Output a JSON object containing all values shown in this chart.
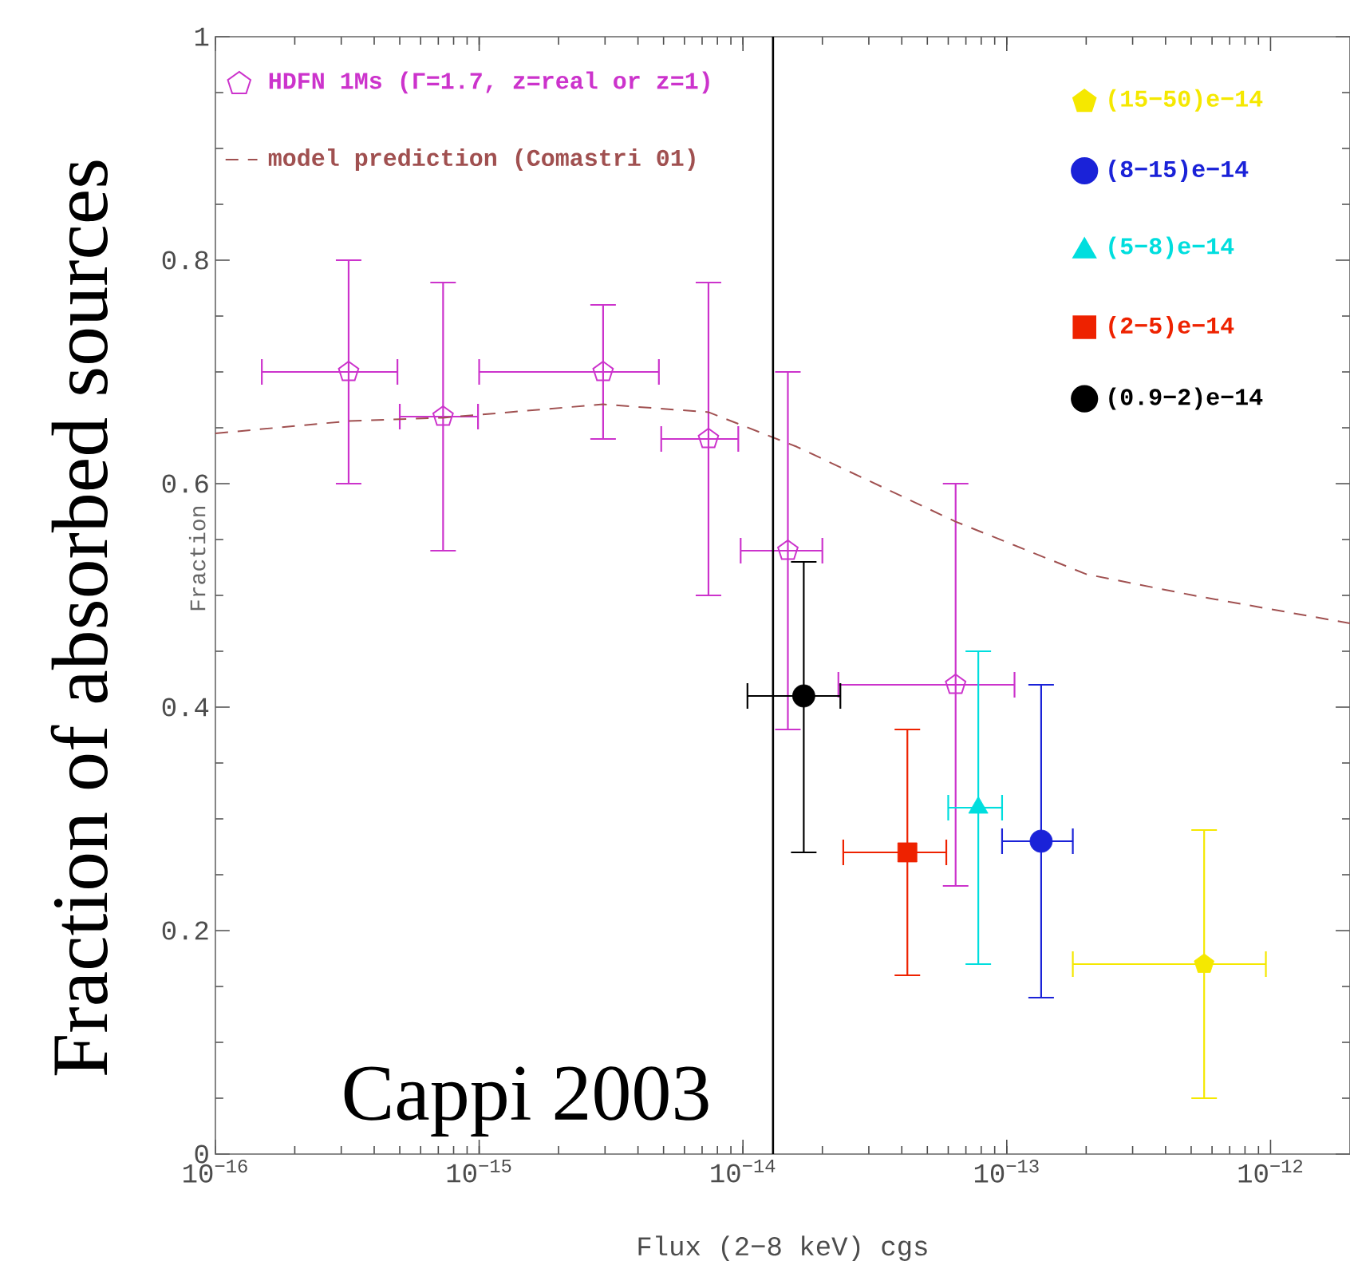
{
  "chart_data": {
    "type": "scatter",
    "xlabel": "Flux (2−8 keV) cgs",
    "ylabel": "Fraction of absorbed sources",
    "annotations": [
      "Cappi 2003",
      "Fraction"
    ],
    "log": "x",
    "xlim": [
      1e-16,
      2e-12
    ],
    "ylim": [
      0,
      1
    ],
    "xticks": [
      {
        "value": 1e-16,
        "label": "10$^{−16}$"
      },
      {
        "value": 1e-15,
        "label": "10$^{−15}$"
      },
      {
        "value": 1e-14,
        "label": "10$^{−14}$"
      },
      {
        "value": 1e-13,
        "label": "10$^{−13}$"
      },
      {
        "value": 1e-12,
        "label": "10$^{−12}$"
      }
    ],
    "yticks": [
      0,
      0.2,
      0.4,
      0.6,
      0.8,
      1
    ],
    "legend": "top",
    "grid": false,
    "ref_lines": [
      {
        "axis": "x",
        "value": 1.3e-14,
        "color": "#000000"
      }
    ],
    "series": [
      {
        "name": "HDFN 1Ms (Γ=1.7, z=real or z=1)",
        "color": "#cc33cc",
        "x": [
          3.2e-16,
          7.3e-16,
          2.95e-15,
          7.4e-15,
          1.48e-14,
          6.4e-14
        ],
        "values": [
          0.7,
          0.66,
          0.7,
          0.64,
          0.54,
          0.42
        ],
        "errors": [
          [
            0.6,
            0.8
          ],
          [
            0.54,
            0.78
          ],
          [
            0.64,
            0.76
          ],
          [
            0.5,
            0.78
          ],
          [
            0.38,
            0.7
          ],
          [
            0.24,
            0.6
          ]
        ],
        "xerrors": [
          [
            1.5e-16,
            4.9e-16
          ],
          [
            5e-16,
            9.9e-16
          ],
          [
            1e-15,
            4.8e-15
          ],
          [
            4.9e-15,
            9.6e-15
          ],
          [
            9.8e-15,
            2e-14
          ],
          [
            2.3e-14,
            1.07e-13
          ]
        ]
      },
      {
        "name": "model prediction (Comastri 01)",
        "type": "line",
        "line_style": "dashed",
        "marker": "none",
        "color": "#a05050",
        "x": [
          1e-16,
          3.2e-16,
          7.3e-16,
          2.95e-15,
          7.4e-15,
          1.6e-14,
          6.4e-14,
          2e-13,
          5.1e-13,
          2e-12
        ],
        "values": [
          0.645,
          0.656,
          0.659,
          0.671,
          0.664,
          0.633,
          0.566,
          0.519,
          0.5,
          0.475
        ]
      },
      {
        "name": "(15−50)e−14",
        "color": "#f5e800",
        "x": [
          5.6e-13
        ],
        "values": [
          0.17
        ],
        "errors": [
          [
            0.05,
            0.29
          ]
        ],
        "xerrors": [
          [
            1.78e-13,
            9.6e-13
          ]
        ]
      },
      {
        "name": "(8−15)e−14",
        "marker": "circle",
        "color": "#1a22d8",
        "x": [
          1.35e-13
        ],
        "values": [
          0.28
        ],
        "errors": [
          [
            0.14,
            0.42
          ]
        ],
        "xerrors": [
          [
            9.6e-14,
            1.78e-13
          ]
        ]
      },
      {
        "name": "(5−8)e−14",
        "marker": "triangle",
        "color": "#00dede",
        "x": [
          7.8e-14
        ],
        "values": [
          0.31
        ],
        "errors": [
          [
            0.17,
            0.45
          ]
        ],
        "xerrors": [
          [
            6e-14,
            9.6e-14
          ]
        ]
      },
      {
        "name": "(2−5)e−14",
        "marker": "square",
        "color": "#ee2200",
        "x": [
          4.2e-14
        ],
        "values": [
          0.27
        ],
        "errors": [
          [
            0.16,
            0.38
          ]
        ],
        "xerrors": [
          [
            2.4e-14,
            5.9e-14
          ]
        ]
      },
      {
        "name": "(0.9−2)e−14",
        "marker": "circle",
        "color": "#000000",
        "x": [
          1.7e-14
        ],
        "values": [
          0.41
        ],
        "errors": [
          [
            0.27,
            0.53
          ]
        ],
        "xerrors": [
          [
            1.04e-14,
            2.34e-14
          ]
        ]
      }
    ]
  }
}
